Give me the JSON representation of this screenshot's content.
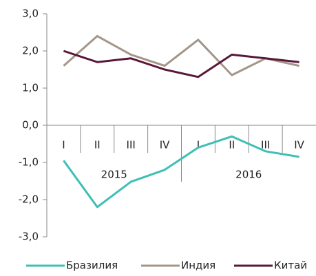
{
  "chart_data": {
    "type": "line",
    "categories": [
      "I",
      "II",
      "III",
      "IV",
      "I",
      "II",
      "III",
      "IV"
    ],
    "groups": [
      "2015",
      "2016"
    ],
    "series": [
      {
        "name": "Бразилия",
        "color": "#3dbfb6",
        "values": [
          -0.95,
          -2.2,
          -1.52,
          -1.2,
          -0.6,
          -0.3,
          -0.7,
          -0.85
        ]
      },
      {
        "name": "Индия",
        "color": "#a39689",
        "values": [
          1.6,
          2.4,
          1.9,
          1.6,
          2.3,
          1.35,
          1.8,
          1.6
        ]
      },
      {
        "name": "Китай",
        "color": "#5a1838",
        "values": [
          2.0,
          1.7,
          1.8,
          1.5,
          1.3,
          1.9,
          1.8,
          1.7
        ]
      }
    ],
    "ylim": [
      -3,
      3
    ],
    "yticks": [
      {
        "value": 3,
        "label": "3,0"
      },
      {
        "value": 2,
        "label": "2,0"
      },
      {
        "value": 1,
        "label": "1,0"
      },
      {
        "value": 0,
        "label": "0,0"
      },
      {
        "value": -1,
        "label": "-1,0"
      },
      {
        "value": -2,
        "label": "-2,0"
      },
      {
        "value": -3,
        "label": "-3,0"
      }
    ],
    "grid": false,
    "legend": "bottom"
  }
}
